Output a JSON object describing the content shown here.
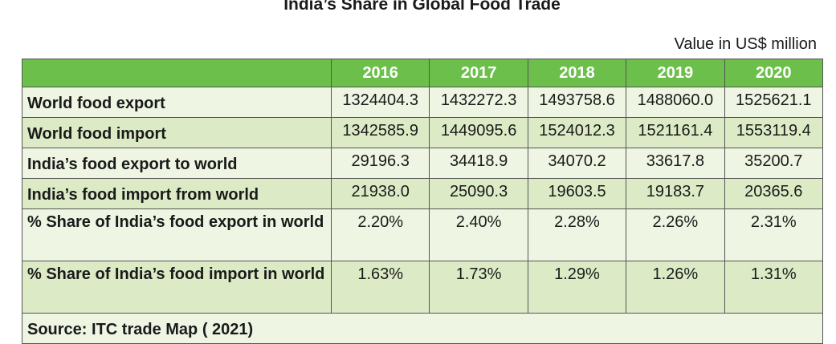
{
  "title": "India’s Share in Global Food Trade",
  "unit_note": "Value in US$ million",
  "table": {
    "columns": [
      "2016",
      "2017",
      "2018",
      "2019",
      "2020"
    ],
    "rows": [
      {
        "label": "World food export",
        "cells": [
          "1324404.3",
          "1432272.3",
          "1493758.6",
          "1488060.0",
          "1525621.1"
        ]
      },
      {
        "label": "World food import",
        "cells": [
          "1342585.9",
          "1449095.6",
          "1524012.3",
          "1521161.4",
          "1553119.4"
        ]
      },
      {
        "label": "India’s food export to world",
        "cells": [
          "29196.3",
          "34418.9",
          "34070.2",
          "33617.8",
          "35200.7"
        ]
      },
      {
        "label": "India’s food import from world",
        "cells": [
          "21938.0",
          "25090.3",
          "19603.5",
          "19183.7",
          "20365.6"
        ]
      },
      {
        "label": "% Share of India’s food export in world",
        "cells": [
          "2.20%",
          "2.40%",
          "2.28%",
          "2.26%",
          "2.31%"
        ]
      },
      {
        "label": "% Share of India’s food import in world",
        "cells": [
          "1.63%",
          "1.73%",
          "1.29%",
          "1.26%",
          "1.31%"
        ]
      }
    ],
    "source": "Source: ITC trade Map ( 2021)"
  }
}
